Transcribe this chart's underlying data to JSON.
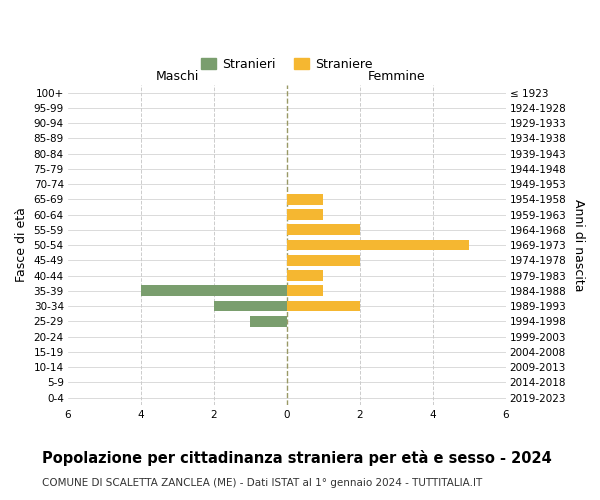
{
  "age_groups": [
    "100+",
    "95-99",
    "90-94",
    "85-89",
    "80-84",
    "75-79",
    "70-74",
    "65-69",
    "60-64",
    "55-59",
    "50-54",
    "45-49",
    "40-44",
    "35-39",
    "30-34",
    "25-29",
    "20-24",
    "15-19",
    "10-14",
    "5-9",
    "0-4"
  ],
  "birth_years": [
    "≤ 1923",
    "1924-1928",
    "1929-1933",
    "1934-1938",
    "1939-1943",
    "1944-1948",
    "1949-1953",
    "1954-1958",
    "1959-1963",
    "1964-1968",
    "1969-1973",
    "1974-1978",
    "1979-1983",
    "1984-1988",
    "1989-1993",
    "1994-1998",
    "1999-2003",
    "2004-2008",
    "2009-2013",
    "2014-2018",
    "2019-2023"
  ],
  "males": [
    0,
    0,
    0,
    0,
    0,
    0,
    0,
    0,
    0,
    0,
    0,
    0,
    0,
    4,
    2,
    1,
    0,
    0,
    0,
    0,
    0
  ],
  "females": [
    0,
    0,
    0,
    0,
    0,
    0,
    0,
    1,
    1,
    2,
    5,
    2,
    1,
    1,
    2,
    0,
    0,
    0,
    0,
    0,
    0
  ],
  "male_color": "#7a9e6e",
  "female_color": "#f5b731",
  "grid_color": "#cccccc",
  "center_line_color": "#999966",
  "background_color": "#ffffff",
  "title": "Popolazione per cittadinanza straniera per età e sesso - 2024",
  "subtitle": "COMUNE DI SCALETTA ZANCLEA (ME) - Dati ISTAT al 1° gennaio 2024 - TUTTITALIA.IT",
  "ylabel_left": "Fasce di età",
  "ylabel_right": "Anni di nascita",
  "legend_stranieri": "Stranieri",
  "legend_straniere": "Straniere",
  "maschi_label": "Maschi",
  "femmine_label": "Femmine",
  "xlim": 6,
  "title_fontsize": 10.5,
  "subtitle_fontsize": 7.5,
  "tick_fontsize": 7.5,
  "label_fontsize": 9
}
